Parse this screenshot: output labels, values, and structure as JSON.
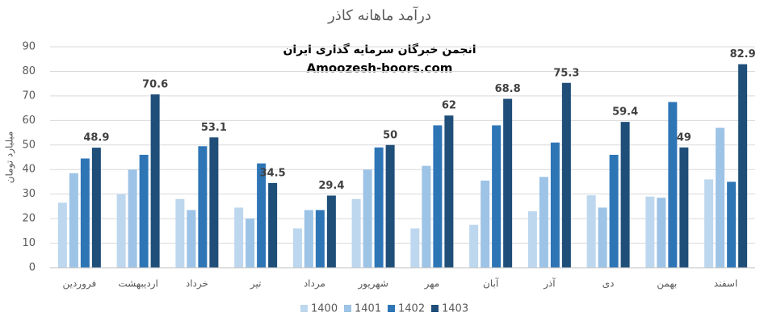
{
  "chart_data": {
    "type": "bar",
    "title": "درآمد ماهانه کاذر",
    "annotations": [
      "انجمن خبرگان سرمایه گذاری ایران",
      "Amoozesh-boors.com"
    ],
    "y_label": "میلیارد تومان",
    "categories": [
      "فروردین",
      "اردیبهشت",
      "خرداد",
      "تیر",
      "مرداد",
      "شهریور",
      "مهر",
      "آبان",
      "آذر",
      "دی",
      "بهمن",
      "اسفند"
    ],
    "series": [
      {
        "name": "1400",
        "color": "#bdd7ee",
        "values": [
          26.5,
          30,
          28,
          24.5,
          16,
          28,
          16,
          17.5,
          23,
          29.5,
          29,
          36
        ]
      },
      {
        "name": "1401",
        "color": "#9dc3e6",
        "values": [
          38.5,
          40,
          23.5,
          20,
          23.5,
          40,
          41.5,
          35.5,
          37,
          24.5,
          28.5,
          57
        ]
      },
      {
        "name": "1402",
        "color": "#2e75b6",
        "values": [
          44.5,
          46,
          49.5,
          42.5,
          23.5,
          49,
          58,
          58,
          51,
          46,
          67.5,
          35
        ]
      },
      {
        "name": "1403",
        "color": "#1f4e79",
        "values": [
          48.9,
          70.6,
          53.1,
          34.5,
          29.4,
          50,
          62,
          68.8,
          75.3,
          59.4,
          49,
          82.9
        ],
        "show_labels": true
      }
    ],
    "ylim": [
      0,
      90
    ],
    "yticks": [
      0,
      10,
      20,
      30,
      40,
      50,
      60,
      70,
      80,
      90
    ],
    "grid": true
  }
}
